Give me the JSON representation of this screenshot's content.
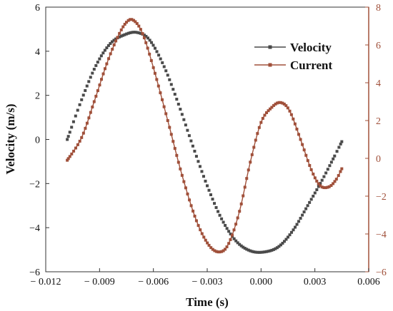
{
  "chart_data": {
    "type": "line",
    "xlabel": "Time (s)",
    "ylabel": "Velocity (m/s)",
    "y2label": "",
    "xlim": [
      -0.012,
      0.006
    ],
    "ylim": [
      -6,
      6
    ],
    "y2lim": [
      -6,
      8
    ],
    "xticks": [
      "-0.012",
      "-0.009",
      "-0.006",
      "-0.003",
      "0.000",
      "0.003",
      "0.006"
    ],
    "yticks": [
      "-6",
      "-4",
      "-2",
      "0",
      "2",
      "4",
      "6"
    ],
    "y2ticks": [
      "-6",
      "-4",
      "-2",
      "0",
      "2",
      "4",
      "6",
      "8"
    ],
    "grid": false,
    "legend": "top-right",
    "series": [
      {
        "name": "Velocity",
        "axis": "left",
        "color": "#4a4a4a",
        "points": [
          [
            -0.0108,
            0.0
          ],
          [
            -0.01,
            1.8
          ],
          [
            -0.0092,
            3.35
          ],
          [
            -0.0084,
            4.35
          ],
          [
            -0.0076,
            4.75
          ],
          [
            -0.0069,
            4.85
          ],
          [
            -0.0062,
            4.5
          ],
          [
            -0.0054,
            3.3
          ],
          [
            -0.0046,
            1.6
          ],
          [
            -0.0038,
            -0.3
          ],
          [
            -0.003,
            -2.1
          ],
          [
            -0.0022,
            -3.6
          ],
          [
            -0.0014,
            -4.6
          ],
          [
            -0.0006,
            -5.05
          ],
          [
            0.0002,
            -5.1
          ],
          [
            0.001,
            -4.85
          ],
          [
            0.0018,
            -4.1
          ],
          [
            0.0026,
            -3.0
          ],
          [
            0.0034,
            -1.85
          ],
          [
            0.0041,
            -0.75
          ],
          [
            0.0045,
            -0.1
          ]
        ]
      },
      {
        "name": "Current",
        "axis": "right",
        "color": "#a0503a",
        "points": [
          [
            -0.0108,
            -0.1
          ],
          [
            -0.01,
            1.1
          ],
          [
            -0.0093,
            3.0
          ],
          [
            -0.0086,
            5.0
          ],
          [
            -0.008,
            6.4
          ],
          [
            -0.0075,
            7.2
          ],
          [
            -0.0071,
            7.3
          ],
          [
            -0.0066,
            6.6
          ],
          [
            -0.006,
            4.8
          ],
          [
            -0.0052,
            2.0
          ],
          [
            -0.0044,
            -0.9
          ],
          [
            -0.0036,
            -3.3
          ],
          [
            -0.0029,
            -4.6
          ],
          [
            -0.0023,
            -4.95
          ],
          [
            -0.0018,
            -4.5
          ],
          [
            -0.0012,
            -2.8
          ],
          [
            -0.0006,
            -0.2
          ],
          [
            0.0,
            1.9
          ],
          [
            0.0006,
            2.7
          ],
          [
            0.0011,
            2.95
          ],
          [
            0.0016,
            2.5
          ],
          [
            0.0022,
            1.0
          ],
          [
            0.0028,
            -0.6
          ],
          [
            0.0033,
            -1.45
          ],
          [
            0.0038,
            -1.5
          ],
          [
            0.0042,
            -1.1
          ],
          [
            0.0045,
            -0.55
          ]
        ]
      }
    ]
  }
}
